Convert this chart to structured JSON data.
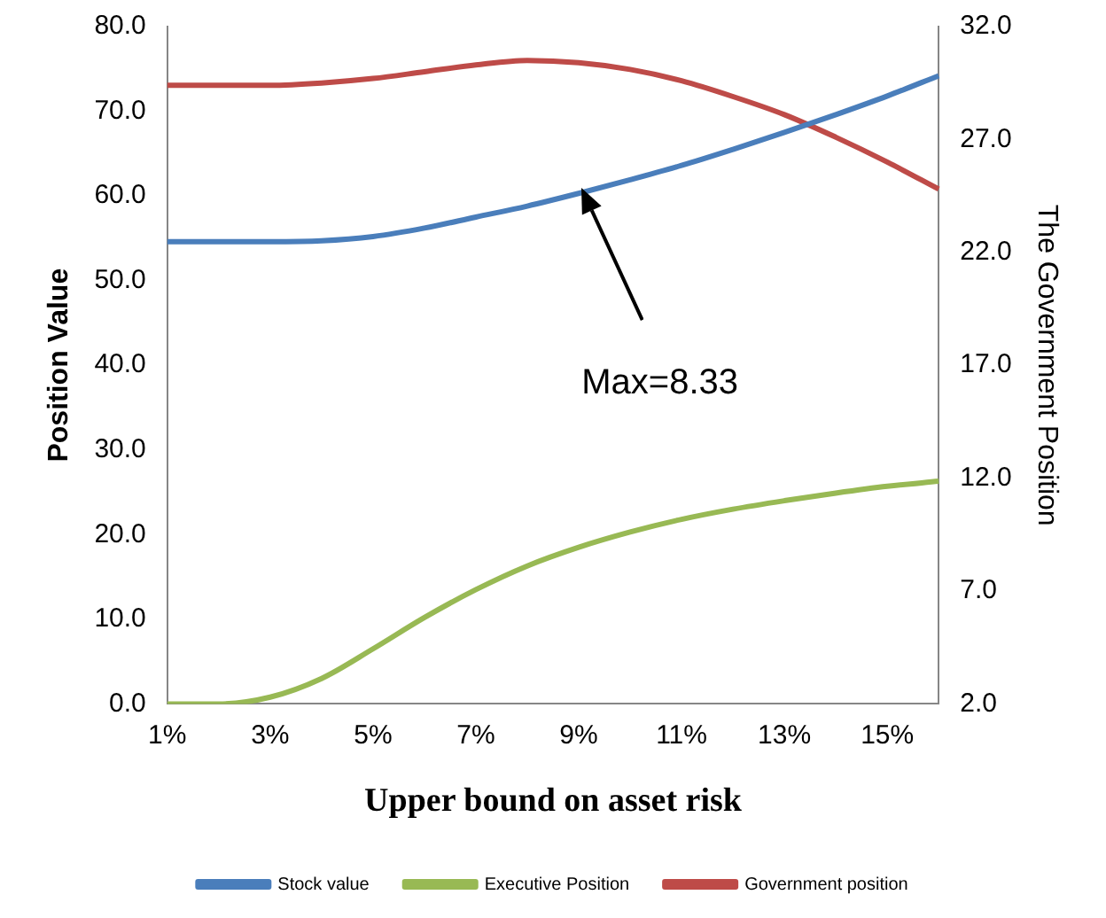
{
  "chart_data": {
    "type": "line",
    "xlabel": "Upper bound on asset risk",
    "ylabel": "Position Value",
    "y2label": "The Government Position",
    "categories": [
      "1%",
      null,
      "3%",
      null,
      "5%",
      null,
      "7%",
      null,
      "9%",
      null,
      "11%",
      null,
      "13%",
      null,
      "15%",
      null
    ],
    "series": [
      {
        "name": "Stock value",
        "color": "#4a7ebb",
        "values": [
          54.6,
          54.6,
          54.6,
          54.7,
          55.2,
          56.2,
          57.5,
          58.8,
          60.3,
          61.9,
          63.6,
          65.5,
          67.5,
          69.6,
          71.8,
          74.2
        ]
      },
      {
        "name": "Executive Position",
        "color": "#98b954",
        "values": [
          0,
          0,
          0.8,
          3.0,
          6.5,
          10.2,
          13.5,
          16.3,
          18.5,
          20.3,
          21.8,
          23.0,
          24.0,
          24.9,
          25.7,
          26.3
        ]
      },
      {
        "name": "Government position",
        "color": "#be4b48",
        "axis": "y2",
        "values": [
          29.4,
          29.4,
          29.4,
          29.5,
          29.7,
          30.0,
          30.3,
          30.5,
          30.4,
          30.1,
          29.6,
          28.9,
          28.1,
          27.1,
          26.0,
          24.8
        ]
      }
    ],
    "ylim": [
      0,
      80
    ],
    "yticks": [
      {
        "value": 0,
        "label": "0.0"
      },
      {
        "value": 10,
        "label": "10.0"
      },
      {
        "value": 20,
        "label": "20.0"
      },
      {
        "value": 30,
        "label": "30.0"
      },
      {
        "value": 40,
        "label": "40.0"
      },
      {
        "value": 50,
        "label": "50.0"
      },
      {
        "value": 60,
        "label": "60.0"
      },
      {
        "value": 70,
        "label": "70.0"
      },
      {
        "value": 80,
        "label": "80.0"
      }
    ],
    "y2lim": [
      2,
      32
    ],
    "y2ticks": [
      {
        "value": 2,
        "label": "2.0"
      },
      {
        "value": 7,
        "label": "7.0"
      },
      {
        "value": 12,
        "label": "12.0"
      },
      {
        "value": 17,
        "label": "17.0"
      },
      {
        "value": 22,
        "label": "22.0"
      },
      {
        "value": 27,
        "label": "27.0"
      },
      {
        "value": 32,
        "label": "32.0"
      }
    ],
    "annotations": [
      "Max=8.33"
    ],
    "grid": false,
    "legend": "bottom",
    "marker": "none",
    "line_style": "solid"
  }
}
